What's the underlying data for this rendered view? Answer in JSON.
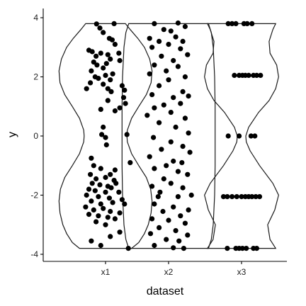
{
  "chart_data": {
    "type": "scatter",
    "subtype": "violin-with-jittered-points",
    "title": "",
    "xlabel": "dataset",
    "ylabel": "y",
    "categories": [
      "x1",
      "x2",
      "x3"
    ],
    "ylim": [
      -4.1,
      4.2
    ],
    "yticks": [
      -4,
      -2,
      0,
      2,
      4
    ],
    "ytick_labels": [
      "-4",
      "-2",
      "0",
      "2",
      "4"
    ],
    "grid": false,
    "legend": "none",
    "point_color": "#000000",
    "violin_color": "#1a1a1a",
    "violins": [
      {
        "category": "x1",
        "range": [
          -3.8,
          3.8
        ],
        "profile": [
          [
            -3.8,
            0.55
          ],
          [
            -3.6,
            0.7
          ],
          [
            -3.3,
            0.82
          ],
          [
            -3.0,
            0.9
          ],
          [
            -2.6,
            0.96
          ],
          [
            -2.2,
            0.98
          ],
          [
            -1.8,
            0.95
          ],
          [
            -1.4,
            0.86
          ],
          [
            -1.0,
            0.7
          ],
          [
            -0.6,
            0.55
          ],
          [
            -0.2,
            0.46
          ],
          [
            0.0,
            0.45
          ],
          [
            0.2,
            0.46
          ],
          [
            0.6,
            0.55
          ],
          [
            1.0,
            0.7
          ],
          [
            1.4,
            0.86
          ],
          [
            1.8,
            0.96
          ],
          [
            2.2,
            0.98
          ],
          [
            2.6,
            0.93
          ],
          [
            3.0,
            0.82
          ],
          [
            3.3,
            0.68
          ],
          [
            3.6,
            0.52
          ],
          [
            3.8,
            0.42
          ]
        ]
      },
      {
        "category": "x2",
        "range": [
          -3.8,
          3.8
        ],
        "profile": [
          [
            -3.8,
            0.84
          ],
          [
            -3.5,
            0.9
          ],
          [
            -3.0,
            0.94
          ],
          [
            -2.0,
            0.97
          ],
          [
            -1.0,
            0.98
          ],
          [
            0.0,
            0.98
          ],
          [
            1.0,
            0.98
          ],
          [
            2.0,
            0.97
          ],
          [
            3.0,
            0.94
          ],
          [
            3.5,
            0.9
          ],
          [
            3.8,
            0.84
          ]
        ]
      },
      {
        "category": "x3",
        "range": [
          -3.8,
          3.8
        ],
        "profile": [
          [
            -3.8,
            0.72
          ],
          [
            -3.5,
            0.6
          ],
          [
            -3.0,
            0.55
          ],
          [
            -2.5,
            0.7
          ],
          [
            -2.0,
            0.78
          ],
          [
            -1.6,
            0.66
          ],
          [
            -1.0,
            0.38
          ],
          [
            -0.5,
            0.18
          ],
          [
            -0.2,
            0.1
          ],
          [
            0.0,
            0.09
          ],
          [
            0.3,
            0.15
          ],
          [
            0.8,
            0.36
          ],
          [
            1.2,
            0.58
          ],
          [
            1.6,
            0.72
          ],
          [
            2.0,
            0.78
          ],
          [
            2.4,
            0.74
          ],
          [
            2.8,
            0.6
          ],
          [
            3.2,
            0.58
          ],
          [
            3.6,
            0.66
          ],
          [
            3.8,
            0.72
          ]
        ]
      }
    ],
    "series": [
      {
        "category": "x1",
        "points": [
          [
            -0.19,
            3.79
          ],
          [
            0.18,
            3.8
          ],
          [
            -0.12,
            3.65
          ],
          [
            -0.05,
            3.5
          ],
          [
            0.08,
            3.3
          ],
          [
            0.14,
            3.25
          ],
          [
            0.2,
            3.1
          ],
          [
            -0.35,
            2.9
          ],
          [
            -0.28,
            2.85
          ],
          [
            -0.2,
            2.7
          ],
          [
            -0.1,
            2.8
          ],
          [
            0.05,
            2.75
          ],
          [
            0.1,
            2.6
          ],
          [
            0.28,
            2.8
          ],
          [
            0.3,
            2.55
          ],
          [
            -0.25,
            2.5
          ],
          [
            -0.18,
            2.4
          ],
          [
            -0.05,
            2.3
          ],
          [
            0.02,
            2.45
          ],
          [
            -0.3,
            2.2
          ],
          [
            -0.22,
            2.0
          ],
          [
            -0.15,
            1.95
          ],
          [
            0.0,
            2.05
          ],
          [
            0.1,
            1.9
          ],
          [
            0.15,
            2.1
          ],
          [
            -0.32,
            1.8
          ],
          [
            -0.05,
            1.75
          ],
          [
            0.05,
            1.6
          ],
          [
            0.12,
            1.5
          ],
          [
            0.35,
            1.7
          ],
          [
            0.4,
            1.55
          ],
          [
            -0.4,
            1.6
          ],
          [
            0.38,
            1.3
          ],
          [
            0.42,
            1.1
          ],
          [
            0.3,
            0.95
          ],
          [
            -0.1,
            0.9
          ],
          [
            0.05,
            1.2
          ],
          [
            0.2,
            0.85
          ],
          [
            -0.05,
            0.3
          ],
          [
            -0.08,
            0.05
          ],
          [
            0.45,
            0.05
          ],
          [
            0.0,
            -0.05
          ],
          [
            0.02,
            -0.3
          ],
          [
            0.52,
            -0.9
          ],
          [
            -0.3,
            -0.75
          ],
          [
            -0.25,
            -1.0
          ],
          [
            0.2,
            -1.15
          ],
          [
            -0.1,
            -1.1
          ],
          [
            -0.32,
            -1.3
          ],
          [
            -0.2,
            -1.45
          ],
          [
            0.0,
            -1.4
          ],
          [
            0.1,
            -1.3
          ],
          [
            0.18,
            -1.5
          ],
          [
            -0.28,
            -1.6
          ],
          [
            -0.12,
            -1.65
          ],
          [
            0.05,
            -1.7
          ],
          [
            0.12,
            -1.75
          ],
          [
            0.22,
            -1.6
          ],
          [
            -0.35,
            -1.8
          ],
          [
            -0.22,
            -1.85
          ],
          [
            0.0,
            -1.9
          ],
          [
            0.28,
            -1.9
          ],
          [
            -0.4,
            -2.0
          ],
          [
            -0.15,
            -2.05
          ],
          [
            0.08,
            -2.1
          ],
          [
            0.35,
            -2.15
          ],
          [
            -0.3,
            -2.2
          ],
          [
            -0.1,
            -2.3
          ],
          [
            0.15,
            -2.25
          ],
          [
            0.4,
            -2.3
          ],
          [
            -0.42,
            -2.4
          ],
          [
            -0.25,
            -2.5
          ],
          [
            -0.05,
            -2.45
          ],
          [
            0.1,
            -2.55
          ],
          [
            0.3,
            -2.6
          ],
          [
            -0.35,
            -2.65
          ],
          [
            -0.15,
            -2.7
          ],
          [
            0.05,
            -2.75
          ],
          [
            0.2,
            -2.8
          ],
          [
            -0.2,
            -2.9
          ],
          [
            0.0,
            -3.0
          ],
          [
            0.3,
            -3.25
          ],
          [
            0.1,
            -3.4
          ],
          [
            -0.3,
            -3.55
          ],
          [
            -0.1,
            -3.7
          ],
          [
            0.48,
            -3.8
          ]
        ]
      },
      {
        "category": "x2",
        "points": [
          [
            -0.3,
            3.8
          ],
          [
            0.2,
            3.82
          ],
          [
            -0.1,
            3.6
          ],
          [
            0.05,
            3.55
          ],
          [
            0.35,
            3.7
          ],
          [
            -0.4,
            3.3
          ],
          [
            -0.2,
            3.2
          ],
          [
            0.15,
            3.35
          ],
          [
            0.3,
            3.2
          ],
          [
            -0.35,
            3.0
          ],
          [
            0.0,
            3.1
          ],
          [
            0.25,
            2.95
          ],
          [
            -0.15,
            2.7
          ],
          [
            0.4,
            2.75
          ],
          [
            0.1,
            2.55
          ],
          [
            -0.3,
            2.4
          ],
          [
            0.2,
            2.35
          ],
          [
            -0.05,
            2.2
          ],
          [
            0.35,
            2.0
          ],
          [
            -0.4,
            2.1
          ],
          [
            0.0,
            1.9
          ],
          [
            -0.2,
            1.7
          ],
          [
            0.3,
            1.5
          ],
          [
            -0.35,
            1.4
          ],
          [
            0.1,
            1.3
          ],
          [
            0.42,
            1.35
          ],
          [
            -0.1,
            1.05
          ],
          [
            0.25,
            1.1
          ],
          [
            -0.3,
            0.95
          ],
          [
            0.05,
            0.8
          ],
          [
            -0.45,
            0.7
          ],
          [
            0.35,
            0.6
          ],
          [
            -0.2,
            0.45
          ],
          [
            0.15,
            0.3
          ],
          [
            0.42,
            0.1
          ],
          [
            -0.32,
            -0.05
          ],
          [
            0.05,
            -0.2
          ],
          [
            0.3,
            -0.35
          ],
          [
            -0.15,
            -0.45
          ],
          [
            0.45,
            -0.55
          ],
          [
            -0.4,
            -0.7
          ],
          [
            0.1,
            -0.85
          ],
          [
            0.28,
            -0.9
          ],
          [
            -0.05,
            -1.0
          ],
          [
            -0.3,
            -1.1
          ],
          [
            0.2,
            -1.2
          ],
          [
            0.4,
            -1.3
          ],
          [
            -0.1,
            -1.45
          ],
          [
            0.05,
            -1.6
          ],
          [
            -0.35,
            -1.7
          ],
          [
            0.3,
            -1.75
          ],
          [
            -0.18,
            -1.9
          ],
          [
            -0.22,
            -2.05
          ],
          [
            0.2,
            -2.05
          ],
          [
            0.48,
            -2.0
          ],
          [
            -0.3,
            -2.3
          ],
          [
            0.1,
            -2.4
          ],
          [
            0.42,
            -2.5
          ],
          [
            -0.12,
            -2.55
          ],
          [
            0.25,
            -2.7
          ],
          [
            -0.35,
            -2.8
          ],
          [
            0.0,
            -2.85
          ],
          [
            0.35,
            -2.95
          ],
          [
            -0.2,
            -3.1
          ],
          [
            0.15,
            -3.2
          ],
          [
            -0.38,
            -3.3
          ],
          [
            0.4,
            -3.35
          ],
          [
            -0.05,
            -3.5
          ],
          [
            0.22,
            -3.55
          ],
          [
            -0.3,
            -3.7
          ],
          [
            0.1,
            -3.78
          ],
          [
            0.32,
            -3.8
          ]
        ]
      },
      {
        "category": "x3",
        "points": [
          [
            -0.28,
            3.8
          ],
          [
            -0.2,
            3.8
          ],
          [
            -0.12,
            3.8
          ],
          [
            0.05,
            3.8
          ],
          [
            0.12,
            3.8
          ],
          [
            0.22,
            3.8
          ],
          [
            -0.15,
            2.05
          ],
          [
            -0.05,
            2.05
          ],
          [
            0.02,
            2.05
          ],
          [
            0.08,
            2.05
          ],
          [
            0.15,
            2.05
          ],
          [
            0.25,
            2.05
          ],
          [
            0.32,
            2.05
          ],
          [
            0.4,
            2.05
          ],
          [
            -0.28,
            0.0
          ],
          [
            -0.05,
            0.0
          ],
          [
            0.2,
            0.0
          ],
          [
            0.28,
            0.0
          ],
          [
            -0.38,
            -2.05
          ],
          [
            -0.3,
            -2.05
          ],
          [
            -0.2,
            -2.05
          ],
          [
            -0.1,
            -2.05
          ],
          [
            0.0,
            -2.05
          ],
          [
            0.08,
            -2.05
          ],
          [
            0.15,
            -2.05
          ],
          [
            0.22,
            -2.05
          ],
          [
            0.3,
            -2.05
          ],
          [
            0.38,
            -2.05
          ],
          [
            -0.3,
            -3.8
          ],
          [
            -0.12,
            -3.8
          ],
          [
            -0.05,
            -3.8
          ],
          [
            0.02,
            -3.8
          ],
          [
            0.1,
            -3.8
          ],
          [
            0.25,
            -3.8
          ],
          [
            0.32,
            -3.8
          ]
        ]
      }
    ]
  }
}
